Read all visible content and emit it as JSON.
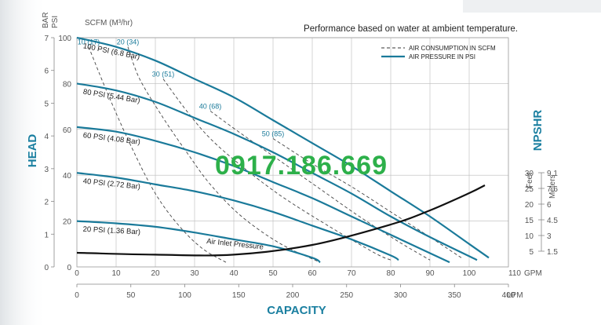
{
  "chart_data": {
    "type": "line",
    "title": "Performance based on water at ambient temperature.",
    "xlabel": "CAPACITY",
    "x_gpm": {
      "unit": "GPM",
      "range": [
        0,
        110
      ],
      "ticks": [
        "0",
        "10",
        "20",
        "30",
        "40",
        "50",
        "60",
        "70",
        "80",
        "90",
        "100",
        "110"
      ]
    },
    "x_lpm": {
      "unit": "LPM",
      "range": [
        0,
        400
      ],
      "ticks": [
        "0",
        "50",
        "100",
        "150",
        "200",
        "250",
        "300",
        "350",
        "400"
      ]
    },
    "ylabel": "HEAD",
    "y_psi": {
      "unit": "PSI",
      "range": [
        0,
        100
      ],
      "ticks": [
        "0",
        "20",
        "40",
        "60",
        "80",
        "100"
      ]
    },
    "y_bar": {
      "unit": "BAR",
      "range": [
        0,
        7
      ],
      "ticks": [
        "0",
        "1",
        "2",
        "3",
        "4",
        "5",
        "6",
        "7"
      ]
    },
    "npshr": {
      "label": "NPSHR",
      "feet_label": "Feet",
      "meters_label": "Meters",
      "feet_ticks": [
        "30",
        "25",
        "20",
        "15",
        "10",
        "5"
      ],
      "meters_ticks": [
        "9.1",
        "7.6",
        "6",
        "4.5",
        "3",
        "1.5"
      ]
    },
    "scfm_header": "SCFM (M³/hr)",
    "legend": [
      {
        "name": "AIR CONSUMPTION IN SCFM",
        "style": "dashed",
        "color": "#333333"
      },
      {
        "name": "AIR PRESSURE IN PSI",
        "style": "solid",
        "color": "#1a7a9a"
      }
    ],
    "pressure_series": [
      {
        "name": "100 PSI (6.8 Bar)",
        "points": [
          [
            0,
            100
          ],
          [
            10,
            96
          ],
          [
            20,
            90
          ],
          [
            30,
            82
          ],
          [
            40,
            74
          ],
          [
            50,
            64
          ],
          [
            60,
            54
          ],
          [
            70,
            44
          ],
          [
            80,
            33
          ],
          [
            90,
            22
          ],
          [
            100,
            10
          ],
          [
            105,
            4
          ]
        ]
      },
      {
        "name": "80 PSI (5.44 Bar)",
        "points": [
          [
            0,
            80
          ],
          [
            10,
            77
          ],
          [
            20,
            72
          ],
          [
            30,
            65
          ],
          [
            40,
            58
          ],
          [
            50,
            50
          ],
          [
            60,
            41
          ],
          [
            70,
            32
          ],
          [
            80,
            22
          ],
          [
            90,
            13
          ],
          [
            102,
            3
          ]
        ]
      },
      {
        "name": "60 PSI (4.08 Bar)",
        "points": [
          [
            0,
            61
          ],
          [
            10,
            59
          ],
          [
            20,
            55
          ],
          [
            30,
            50
          ],
          [
            40,
            44
          ],
          [
            50,
            37
          ],
          [
            60,
            30
          ],
          [
            70,
            22
          ],
          [
            80,
            14
          ],
          [
            90,
            6
          ],
          [
            95,
            2
          ]
        ]
      },
      {
        "name": "40 PSI (2.72 Bar)",
        "points": [
          [
            0,
            41
          ],
          [
            10,
            39
          ],
          [
            20,
            36
          ],
          [
            30,
            33
          ],
          [
            40,
            29
          ],
          [
            50,
            24
          ],
          [
            60,
            18
          ],
          [
            70,
            12
          ],
          [
            80,
            5
          ],
          [
            82,
            3
          ]
        ]
      },
      {
        "name": "20 PSI (1.36 Bar)",
        "points": [
          [
            0,
            20
          ],
          [
            10,
            19
          ],
          [
            20,
            17.5
          ],
          [
            30,
            15
          ],
          [
            40,
            12
          ],
          [
            50,
            9
          ],
          [
            60,
            4
          ],
          [
            62,
            2
          ]
        ]
      }
    ],
    "air_series": [
      {
        "name": "10 (17)",
        "points": [
          [
            3,
            96
          ],
          [
            8,
            75
          ],
          [
            14,
            52
          ],
          [
            20,
            32
          ],
          [
            26,
            18
          ],
          [
            32,
            8
          ],
          [
            38,
            2
          ]
        ]
      },
      {
        "name": "20 (34)",
        "points": [
          [
            13,
            96
          ],
          [
            16,
            82
          ],
          [
            22,
            65
          ],
          [
            28,
            50
          ],
          [
            34,
            36
          ],
          [
            42,
            22
          ],
          [
            52,
            10
          ],
          [
            62,
            2
          ]
        ]
      },
      {
        "name": "30 (51)",
        "points": [
          [
            22,
            82
          ],
          [
            28,
            68
          ],
          [
            34,
            56
          ],
          [
            42,
            44
          ],
          [
            52,
            31
          ],
          [
            64,
            18
          ],
          [
            76,
            6
          ],
          [
            80,
            3
          ]
        ]
      },
      {
        "name": "40 (68)",
        "points": [
          [
            34,
            68
          ],
          [
            42,
            58
          ],
          [
            52,
            46
          ],
          [
            62,
            34
          ],
          [
            72,
            22
          ],
          [
            82,
            11
          ],
          [
            90,
            3
          ]
        ]
      },
      {
        "name": "50 (85)",
        "points": [
          [
            50,
            56
          ],
          [
            60,
            45
          ],
          [
            70,
            35
          ],
          [
            80,
            24
          ],
          [
            90,
            13
          ],
          [
            98,
            4
          ]
        ]
      }
    ],
    "npshr_series": {
      "name": "Air Inlet Pressure",
      "points": [
        [
          0,
          4.5
        ],
        [
          20,
          3.9
        ],
        [
          40,
          3.9
        ],
        [
          60,
          7
        ],
        [
          80,
          13.5
        ],
        [
          90,
          18
        ],
        [
          100,
          23.5
        ],
        [
          104,
          26
        ]
      ]
    }
  },
  "watermark": "0917.186.669",
  "colors": {
    "blue": "#1a7a9a",
    "axis_blue": "#1a7fa0",
    "grid": "#bbbbbb",
    "watermark": "#2db04a"
  }
}
